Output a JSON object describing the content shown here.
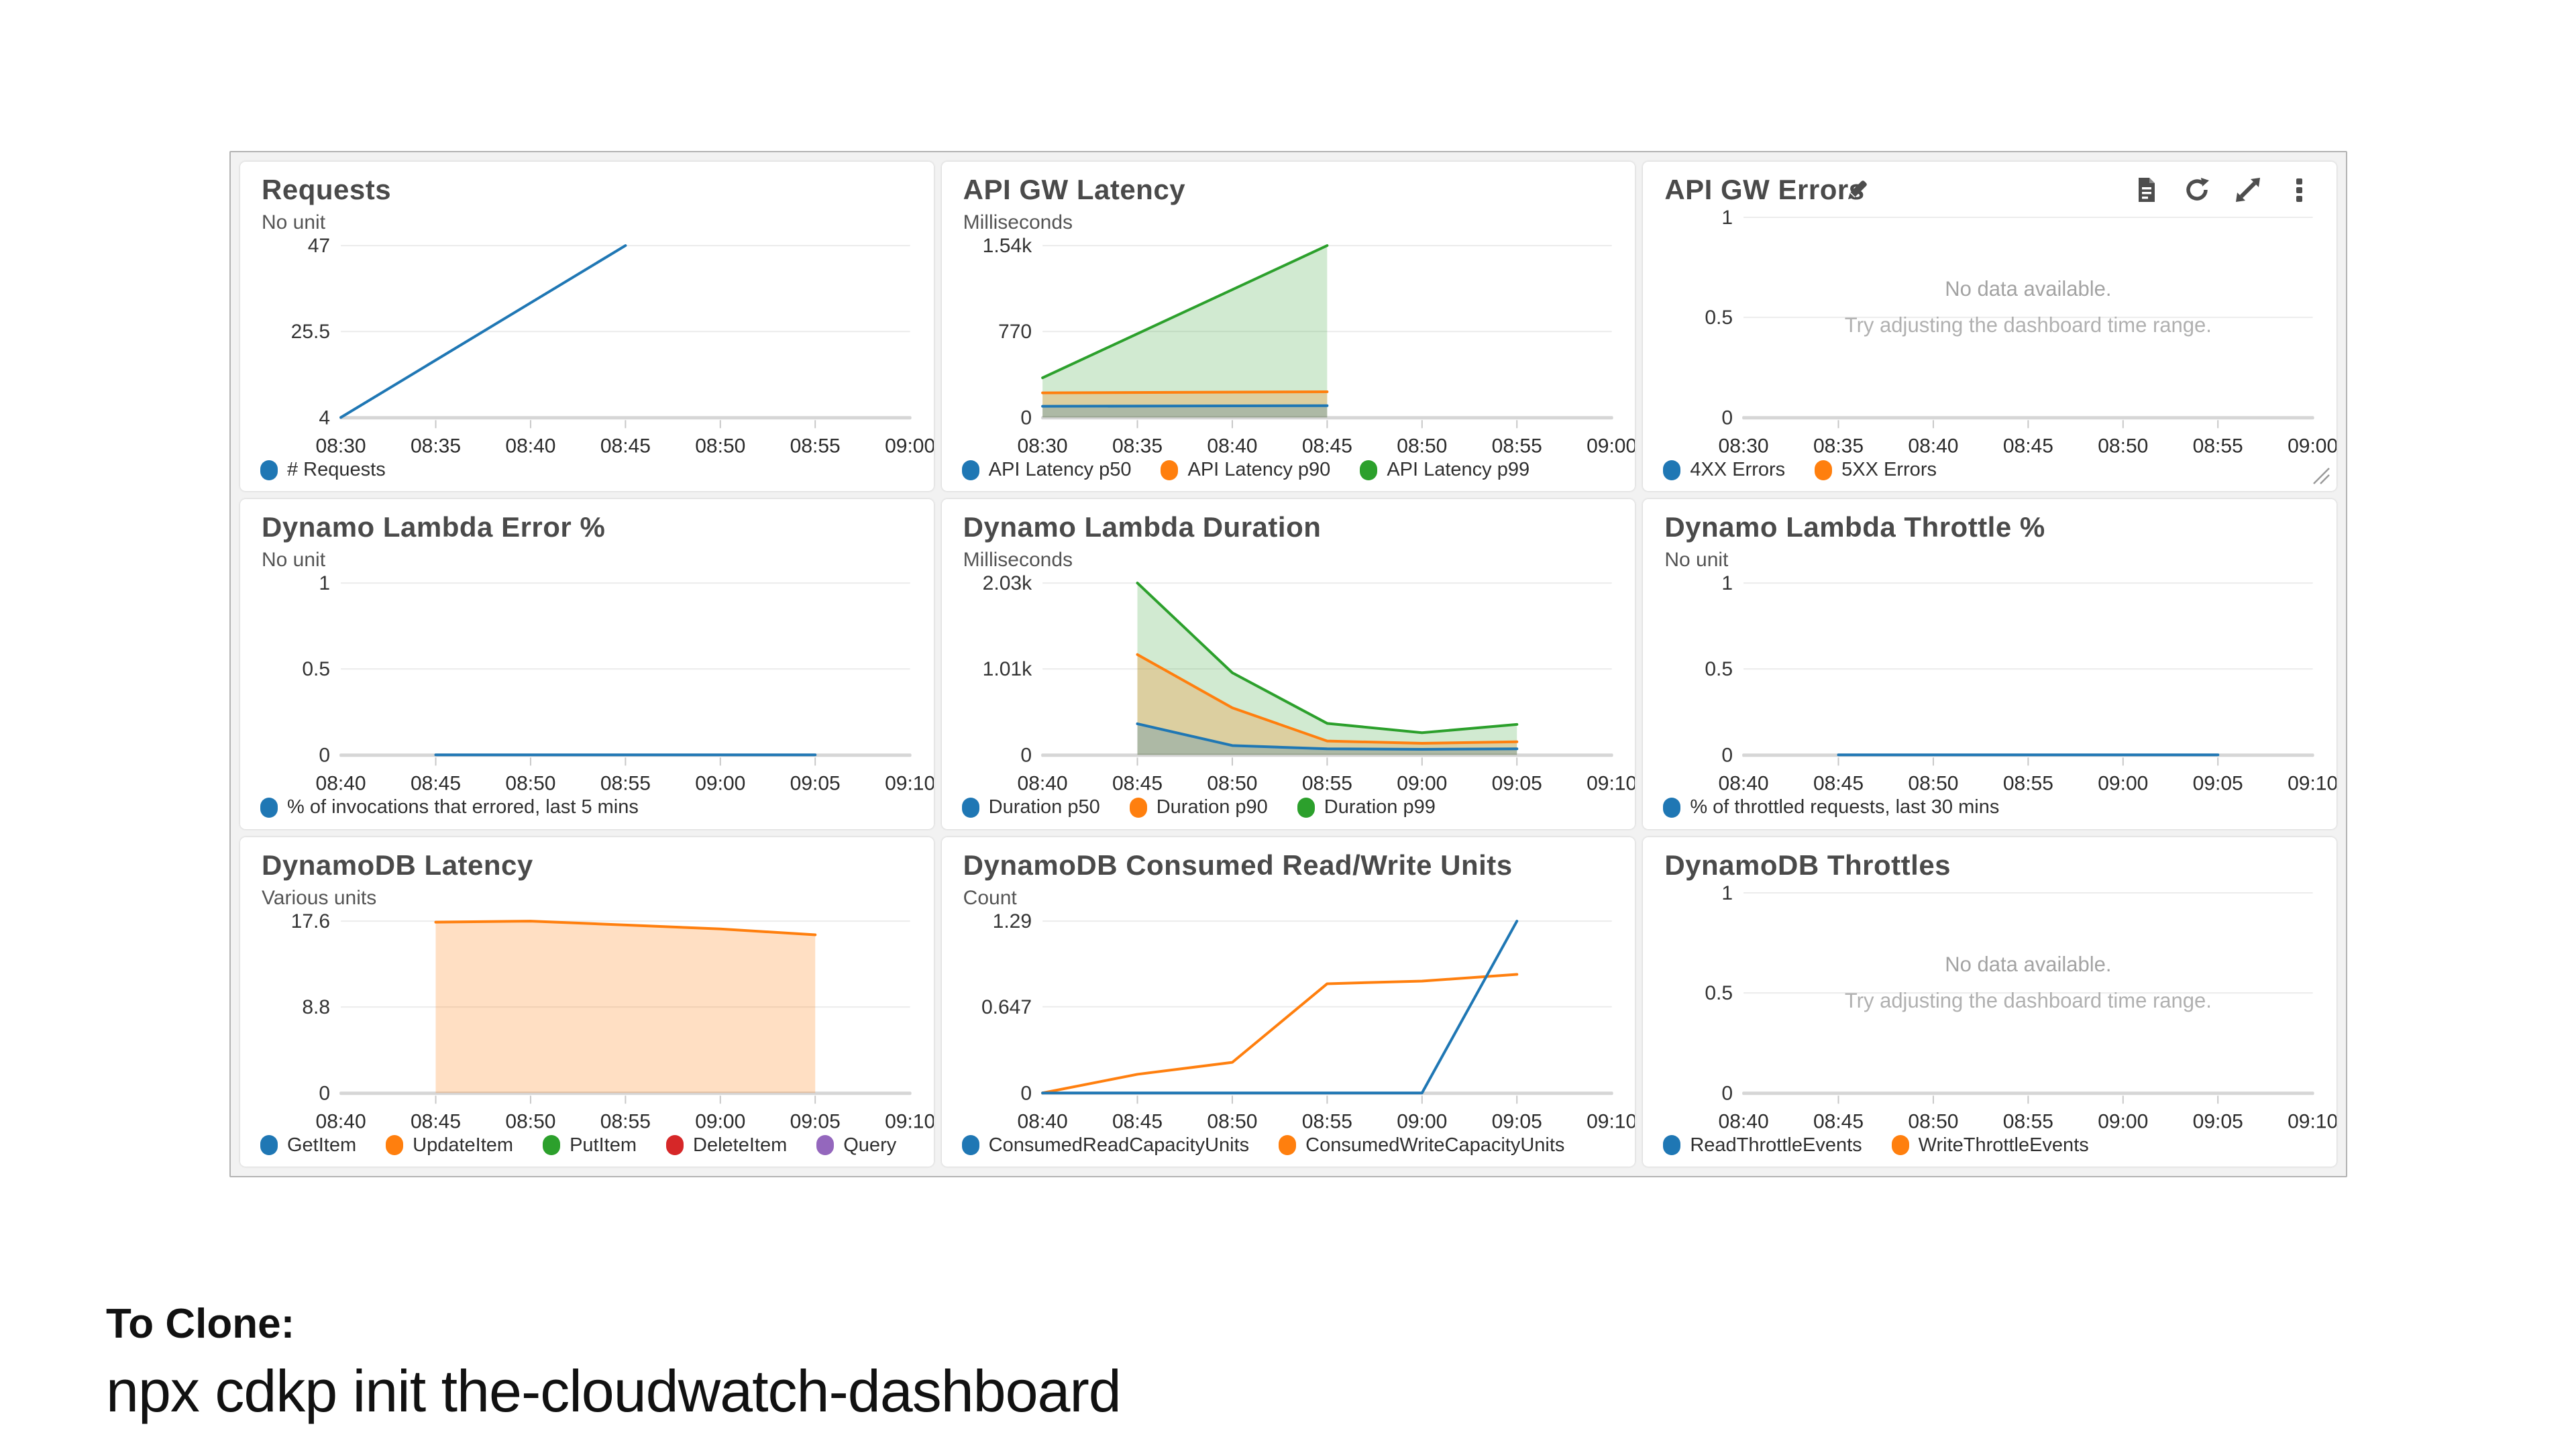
{
  "footer": {
    "line1": "To Clone:",
    "line2": "npx cdkp init the-cloudwatch-dashboard"
  },
  "no_data_message": {
    "line1": "No data available.",
    "line2": "Try adjusting the dashboard time range."
  },
  "palette": {
    "blue": "#1f77b4",
    "orange": "#ff7f0e",
    "green": "#2ca02c",
    "red": "#d62728",
    "purple": "#9467bd"
  },
  "toolbar_icons": [
    "logs-icon",
    "refresh-icon",
    "expand-icon",
    "menu-icon"
  ],
  "chart_data": [
    {
      "id": "requests",
      "type": "line",
      "title": "Requests",
      "unit_label": "No unit",
      "ylim": [
        4,
        47
      ],
      "y_ticks": [
        {
          "value": 47,
          "label": "47"
        },
        {
          "value": 25.5,
          "label": "25.5"
        },
        {
          "value": 4,
          "label": "4"
        }
      ],
      "x_tick_labels": [
        "08:30",
        "08:35",
        "08:40",
        "08:45",
        "08:50",
        "08:55",
        "09:00"
      ],
      "legend": [
        {
          "label": "# Requests",
          "color": "#1f77b4"
        }
      ],
      "series": [
        {
          "name": "# Requests",
          "color": "#1f77b4",
          "area": false,
          "points": [
            [
              0,
              4
            ],
            [
              3,
              47
            ]
          ]
        }
      ]
    },
    {
      "id": "api-gw-latency",
      "type": "area",
      "title": "API GW Latency",
      "unit_label": "Milliseconds",
      "ylim": [
        0,
        1540
      ],
      "y_ticks": [
        {
          "value": 1540,
          "label": "1.54k"
        },
        {
          "value": 770,
          "label": "770"
        },
        {
          "value": 0,
          "label": "0"
        }
      ],
      "x_tick_labels": [
        "08:30",
        "08:35",
        "08:40",
        "08:45",
        "08:50",
        "08:55",
        "09:00"
      ],
      "legend": [
        {
          "label": "API Latency p50",
          "color": "#1f77b4"
        },
        {
          "label": "API Latency p90",
          "color": "#ff7f0e"
        },
        {
          "label": "API Latency p99",
          "color": "#2ca02c"
        }
      ],
      "series": [
        {
          "name": "API Latency p99",
          "color": "#2ca02c",
          "fill": "rgba(44,160,44,0.22)",
          "area": true,
          "points": [
            [
              0,
              355
            ],
            [
              3,
              1540
            ]
          ]
        },
        {
          "name": "API Latency p90",
          "color": "#ff7f0e",
          "fill": "rgba(255,127,14,0.25)",
          "area": true,
          "points": [
            [
              0,
              220
            ],
            [
              3,
              230
            ]
          ]
        },
        {
          "name": "API Latency p50",
          "color": "#1f77b4",
          "fill": "rgba(31,119,180,0.25)",
          "area": true,
          "points": [
            [
              0,
              100
            ],
            [
              3,
              105
            ]
          ]
        }
      ]
    },
    {
      "id": "api-gw-errors",
      "type": "line",
      "title": "API GW Errors",
      "unit_label": null,
      "ylim": [
        0,
        1
      ],
      "y_ticks": [
        {
          "value": 1,
          "label": "1"
        },
        {
          "value": 0.5,
          "label": "0.5"
        },
        {
          "value": 0,
          "label": "0"
        }
      ],
      "x_tick_labels": [
        "08:30",
        "08:35",
        "08:40",
        "08:45",
        "08:50",
        "08:55",
        "09:00"
      ],
      "legend": [
        {
          "label": "4XX Errors",
          "color": "#1f77b4"
        },
        {
          "label": "5XX Errors",
          "color": "#ff7f0e"
        }
      ],
      "series": [],
      "no_data": true,
      "has_toolbar": true
    },
    {
      "id": "dynamo-lambda-error",
      "type": "line",
      "title": "Dynamo Lambda Error %",
      "unit_label": "No unit",
      "ylim": [
        0,
        1
      ],
      "y_ticks": [
        {
          "value": 1,
          "label": "1"
        },
        {
          "value": 0.5,
          "label": "0.5"
        },
        {
          "value": 0,
          "label": "0"
        }
      ],
      "x_tick_labels": [
        "08:40",
        "08:45",
        "08:50",
        "08:55",
        "09:00",
        "09:05",
        "09:10"
      ],
      "legend": [
        {
          "label": "% of invocations that errored, last 5 mins",
          "color": "#1f77b4"
        }
      ],
      "series": [
        {
          "name": "% of invocations that errored",
          "color": "#1f77b4",
          "area": false,
          "points": [
            [
              1,
              0
            ],
            [
              5,
              0
            ]
          ]
        }
      ]
    },
    {
      "id": "dynamo-lambda-duration",
      "type": "area",
      "title": "Dynamo Lambda Duration",
      "unit_label": "Milliseconds",
      "ylim": [
        0,
        2030
      ],
      "y_ticks": [
        {
          "value": 2030,
          "label": "2.03k"
        },
        {
          "value": 1015,
          "label": "1.01k"
        },
        {
          "value": 0,
          "label": "0"
        }
      ],
      "x_tick_labels": [
        "08:40",
        "08:45",
        "08:50",
        "08:55",
        "09:00",
        "09:05",
        "09:10"
      ],
      "legend": [
        {
          "label": "Duration p50",
          "color": "#1f77b4"
        },
        {
          "label": "Duration p90",
          "color": "#ff7f0e"
        },
        {
          "label": "Duration p99",
          "color": "#2ca02c"
        }
      ],
      "series": [
        {
          "name": "Duration p99",
          "color": "#2ca02c",
          "fill": "rgba(44,160,44,0.22)",
          "area": true,
          "points": [
            [
              1,
              2030
            ],
            [
              2,
              970
            ],
            [
              3,
              372
            ],
            [
              4,
              262
            ],
            [
              5,
              359
            ]
          ]
        },
        {
          "name": "Duration p90",
          "color": "#ff7f0e",
          "fill": "rgba(255,127,14,0.25)",
          "area": true,
          "points": [
            [
              1,
              1185
            ],
            [
              2,
              556
            ],
            [
              3,
              163
            ],
            [
              4,
              136
            ],
            [
              5,
              155
            ]
          ]
        },
        {
          "name": "Duration p50",
          "color": "#1f77b4",
          "fill": "rgba(31,119,180,0.25)",
          "area": true,
          "points": [
            [
              1,
              367
            ],
            [
              2,
              110
            ],
            [
              3,
              71
            ],
            [
              4,
              66
            ],
            [
              5,
              71
            ]
          ]
        }
      ]
    },
    {
      "id": "dynamo-lambda-throttle",
      "type": "line",
      "title": "Dynamo Lambda Throttle %",
      "unit_label": "No unit",
      "ylim": [
        0,
        1
      ],
      "y_ticks": [
        {
          "value": 1,
          "label": "1"
        },
        {
          "value": 0.5,
          "label": "0.5"
        },
        {
          "value": 0,
          "label": "0"
        }
      ],
      "x_tick_labels": [
        "08:40",
        "08:45",
        "08:50",
        "08:55",
        "09:00",
        "09:05",
        "09:10"
      ],
      "legend": [
        {
          "label": "% of throttled requests, last 30 mins",
          "color": "#1f77b4"
        }
      ],
      "series": [
        {
          "name": "% of throttled requests",
          "color": "#1f77b4",
          "area": false,
          "points": [
            [
              1,
              0
            ],
            [
              5,
              0
            ]
          ]
        }
      ]
    },
    {
      "id": "dynamodb-latency",
      "type": "area",
      "title": "DynamoDB Latency",
      "unit_label": "Various units",
      "ylim": [
        0,
        17.6
      ],
      "y_ticks": [
        {
          "value": 17.6,
          "label": "17.6"
        },
        {
          "value": 8.8,
          "label": "8.8"
        },
        {
          "value": 0,
          "label": "0"
        }
      ],
      "x_tick_labels": [
        "08:40",
        "08:45",
        "08:50",
        "08:55",
        "09:00",
        "09:05",
        "09:10"
      ],
      "legend": [
        {
          "label": "GetItem",
          "color": "#1f77b4"
        },
        {
          "label": "UpdateItem",
          "color": "#ff7f0e"
        },
        {
          "label": "PutItem",
          "color": "#2ca02c"
        },
        {
          "label": "DeleteItem",
          "color": "#d62728"
        },
        {
          "label": "Query",
          "color": "#9467bd"
        }
      ],
      "series": [
        {
          "name": "UpdateItem",
          "color": "#ff7f0e",
          "fill": "rgba(255,127,14,0.25)",
          "area": true,
          "points": [
            [
              1,
              17.5
            ],
            [
              2,
              17.6
            ],
            [
              3,
              17.2
            ],
            [
              4,
              16.8
            ],
            [
              5,
              16.2
            ]
          ]
        }
      ]
    },
    {
      "id": "dynamodb-consumed",
      "type": "line",
      "title": "DynamoDB Consumed Read/Write Units",
      "unit_label": "Count",
      "ylim": [
        0,
        1.29
      ],
      "y_ticks": [
        {
          "value": 1.29,
          "label": "1.29"
        },
        {
          "value": 0.647,
          "label": "0.647"
        },
        {
          "value": 0,
          "label": "0"
        }
      ],
      "x_tick_labels": [
        "08:40",
        "08:45",
        "08:50",
        "08:55",
        "09:00",
        "09:05",
        "09:10"
      ],
      "legend": [
        {
          "label": "ConsumedReadCapacityUnits",
          "color": "#1f77b4"
        },
        {
          "label": "ConsumedWriteCapacityUnits",
          "color": "#ff7f0e"
        }
      ],
      "series": [
        {
          "name": "ConsumedWriteCapacityUnits",
          "color": "#ff7f0e",
          "area": false,
          "points": [
            [
              0,
              0
            ],
            [
              1,
              0.14
            ],
            [
              2,
              0.23
            ],
            [
              3,
              0.82
            ],
            [
              4,
              0.84
            ],
            [
              5,
              0.89
            ]
          ]
        },
        {
          "name": "ConsumedReadCapacityUnits",
          "color": "#1f77b4",
          "area": false,
          "points": [
            [
              0,
              0
            ],
            [
              4,
              0
            ],
            [
              5,
              1.29
            ]
          ]
        }
      ]
    },
    {
      "id": "dynamodb-throttles",
      "type": "line",
      "title": "DynamoDB Throttles",
      "unit_label": null,
      "ylim": [
        0,
        1
      ],
      "y_ticks": [
        {
          "value": 1,
          "label": "1"
        },
        {
          "value": 0.5,
          "label": "0.5"
        },
        {
          "value": 0,
          "label": "0"
        }
      ],
      "x_tick_labels": [
        "08:40",
        "08:45",
        "08:50",
        "08:55",
        "09:00",
        "09:05",
        "09:10"
      ],
      "legend": [
        {
          "label": "ReadThrottleEvents",
          "color": "#1f77b4"
        },
        {
          "label": "WriteThrottleEvents",
          "color": "#ff7f0e"
        }
      ],
      "series": [],
      "no_data": true
    }
  ]
}
